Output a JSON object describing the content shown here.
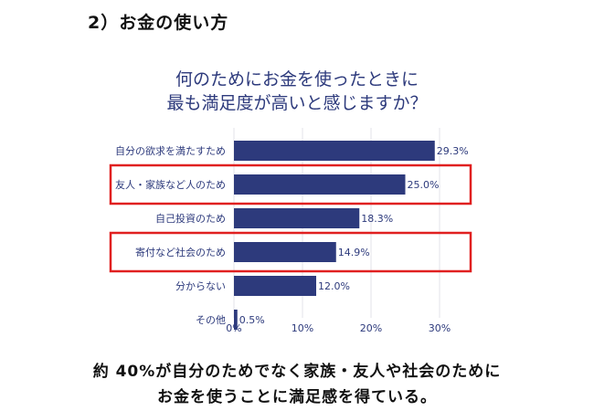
{
  "heading": "2）お金の使い方",
  "chart_data": {
    "type": "bar",
    "orientation": "horizontal",
    "title_lines": [
      "何のためにお金を使ったときに",
      "最も満足度が高いと感じますか？"
    ],
    "categories": [
      "自分の欲求を満たすため",
      "友人・家族など人のため",
      "自己投資のため",
      "寄付など社会のため",
      "分からない",
      "その他"
    ],
    "values": [
      29.3,
      25.0,
      18.3,
      14.9,
      12.0,
      0.5
    ],
    "value_labels": [
      "29.3%",
      "25.0%",
      "18.3%",
      "14.9%",
      "12.0%",
      "0.5%"
    ],
    "highlighted": [
      false,
      true,
      false,
      true,
      false,
      false
    ],
    "xlim": [
      0,
      30
    ],
    "xticks": [
      0,
      10,
      20,
      30
    ],
    "xtick_labels": [
      "0%",
      "10%",
      "20%",
      "30%"
    ],
    "grid": true,
    "colors": {
      "bar": "#2d3a7c",
      "highlight_box": "#e02020",
      "label": "#2d3a7c",
      "grid": "#e3e3e8"
    }
  },
  "footer": {
    "line1": "約 40%が自分のためでなく家族・友人や社会のために",
    "line2": "お金を使うことに満足感を得ている。"
  }
}
